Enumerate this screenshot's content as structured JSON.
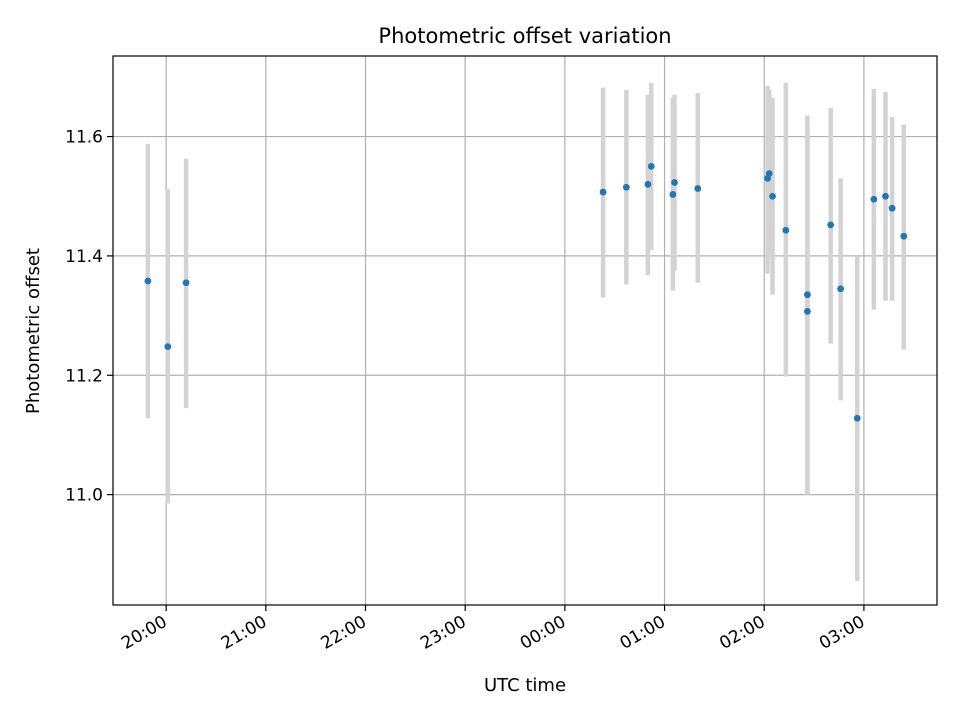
{
  "chart_data": {
    "type": "scatter",
    "title": "Photometric offset variation",
    "xlabel": "UTC time",
    "ylabel": "Photometric offset",
    "x_ticks": [
      "20:00",
      "21:00",
      "22:00",
      "23:00",
      "00:00",
      "01:00",
      "02:00",
      "03:00"
    ],
    "y_ticks": [
      "11.0",
      "11.2",
      "11.4",
      "11.6"
    ],
    "x_tick_minutes": [
      0,
      60,
      120,
      180,
      240,
      300,
      360,
      420
    ],
    "y_tick_values": [
      11.0,
      11.2,
      11.4,
      11.6
    ],
    "xlim_minutes": [
      -32,
      464
    ],
    "ylim": [
      10.815,
      11.735
    ],
    "grid": true,
    "error_bar_color": "#d3d3d3",
    "marker_color": "#1f77b4",
    "points": [
      {
        "t": "19:49",
        "y": 11.358,
        "lo": 11.128,
        "hi": 11.588
      },
      {
        "t": "20:01",
        "y": 11.248,
        "lo": 10.985,
        "hi": 11.512
      },
      {
        "t": "20:12",
        "y": 11.355,
        "lo": 11.145,
        "hi": 11.563
      },
      {
        "t": "00:23",
        "y": 11.507,
        "lo": 11.33,
        "hi": 11.682
      },
      {
        "t": "00:37",
        "y": 11.515,
        "lo": 11.352,
        "hi": 11.678
      },
      {
        "t": "00:50",
        "y": 11.52,
        "lo": 11.368,
        "hi": 11.67
      },
      {
        "t": "00:52",
        "y": 11.55,
        "lo": 11.41,
        "hi": 11.69
      },
      {
        "t": "01:05",
        "y": 11.503,
        "lo": 11.342,
        "hi": 11.665
      },
      {
        "t": "01:06",
        "y": 11.523,
        "lo": 11.375,
        "hi": 11.67
      },
      {
        "t": "01:20",
        "y": 11.513,
        "lo": 11.355,
        "hi": 11.673
      },
      {
        "t": "02:02",
        "y": 11.53,
        "lo": 11.37,
        "hi": 11.685
      },
      {
        "t": "02:03",
        "y": 11.538,
        "lo": 11.4,
        "hi": 11.678
      },
      {
        "t": "02:05",
        "y": 11.5,
        "lo": 11.335,
        "hi": 11.665
      },
      {
        "t": "02:13",
        "y": 11.443,
        "lo": 11.198,
        "hi": 11.69
      },
      {
        "t": "02:26",
        "y": 11.307,
        "lo": 11.0,
        "hi": 11.615
      },
      {
        "t": "02:26",
        "y": 11.335,
        "lo": 11.0,
        "hi": 11.635
      },
      {
        "t": "02:40",
        "y": 11.452,
        "lo": 11.253,
        "hi": 11.648
      },
      {
        "t": "02:46",
        "y": 11.345,
        "lo": 11.158,
        "hi": 11.53
      },
      {
        "t": "02:56",
        "y": 11.128,
        "lo": 10.855,
        "hi": 11.4
      },
      {
        "t": "03:06",
        "y": 11.495,
        "lo": 11.31,
        "hi": 11.68
      },
      {
        "t": "03:13",
        "y": 11.5,
        "lo": 11.325,
        "hi": 11.675
      },
      {
        "t": "03:17",
        "y": 11.48,
        "lo": 11.325,
        "hi": 11.633
      },
      {
        "t": "03:24",
        "y": 11.433,
        "lo": 11.243,
        "hi": 11.62
      }
    ]
  }
}
